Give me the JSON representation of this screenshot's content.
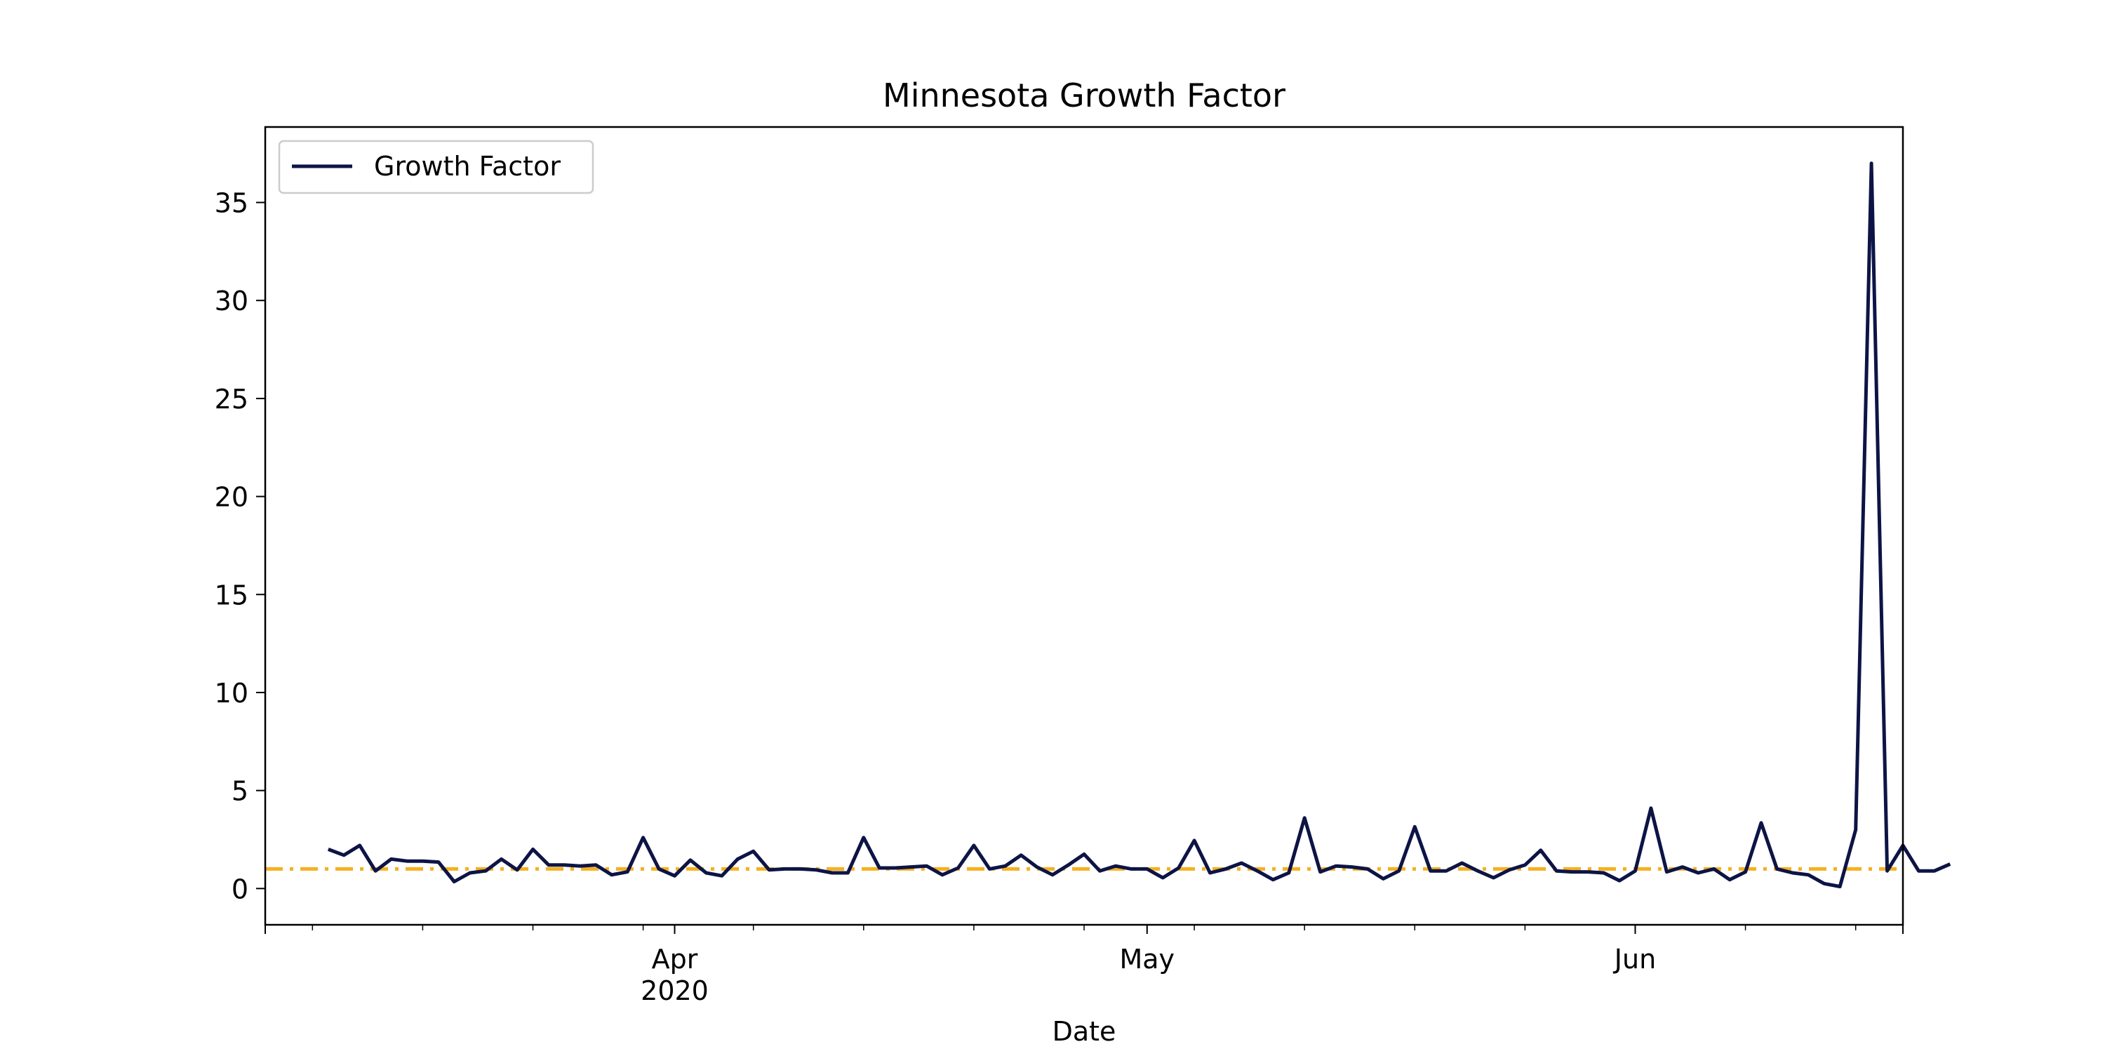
{
  "chart_data": {
    "type": "line",
    "title": "Minnesota Growth Factor",
    "xlabel": "Date",
    "ylabel": "",
    "x_start": "2020-03-10",
    "x_range": [
      "2020-03-06",
      "2020-06-18"
    ],
    "ylim": [
      -1.85,
      38.85
    ],
    "y_ticks": [
      0,
      5,
      10,
      15,
      20,
      25,
      30,
      35
    ],
    "x_major_ticks": [
      {
        "date": "2020-04-01",
        "label": "Apr",
        "sublabel": "2020"
      },
      {
        "date": "2020-05-01",
        "label": "May",
        "sublabel": ""
      },
      {
        "date": "2020-06-01",
        "label": "Jun",
        "sublabel": ""
      }
    ],
    "x_minor_tick_dates": [
      "2020-03-09",
      "2020-03-16",
      "2020-03-23",
      "2020-03-30",
      "2020-04-06",
      "2020-04-13",
      "2020-04-20",
      "2020-04-27",
      "2020-05-04",
      "2020-05-11",
      "2020-05-18",
      "2020-05-25",
      "2020-06-08",
      "2020-06-15"
    ],
    "grid": false,
    "legend_position": "top-left",
    "colors": {
      "series": "#0d1445",
      "reference": "#f5b020"
    },
    "reference_line": {
      "y": 1,
      "style": "dash-dot"
    },
    "series": [
      {
        "name": "Growth Factor",
        "values": [
          2.0,
          1.7,
          2.2,
          0.9,
          1.5,
          1.4,
          1.4,
          1.35,
          0.35,
          0.8,
          0.9,
          1.5,
          0.95,
          2.0,
          1.2,
          1.2,
          1.15,
          1.2,
          0.7,
          0.85,
          2.6,
          1.0,
          0.65,
          1.45,
          0.8,
          0.65,
          1.5,
          1.9,
          0.95,
          1.0,
          1.0,
          0.95,
          0.8,
          0.8,
          2.6,
          1.05,
          1.05,
          1.1,
          1.15,
          0.7,
          1.05,
          2.2,
          1.0,
          1.15,
          1.7,
          1.1,
          0.7,
          1.2,
          1.75,
          0.9,
          1.15,
          1.0,
          1.0,
          0.55,
          1.05,
          2.45,
          0.8,
          1.0,
          1.3,
          0.9,
          0.45,
          0.8,
          3.6,
          0.85,
          1.15,
          1.1,
          1.0,
          0.5,
          0.9,
          3.15,
          0.9,
          0.9,
          1.3,
          0.9,
          0.55,
          0.95,
          1.2,
          1.95,
          0.9,
          0.85,
          0.85,
          0.8,
          0.4,
          0.9,
          4.1,
          0.85,
          1.1,
          0.8,
          1.0,
          0.45,
          0.85,
          3.35,
          1.0,
          0.8,
          0.7,
          0.25,
          0.1,
          3.0,
          37.0,
          0.9,
          2.2,
          0.9,
          0.9,
          1.25
        ]
      }
    ]
  }
}
